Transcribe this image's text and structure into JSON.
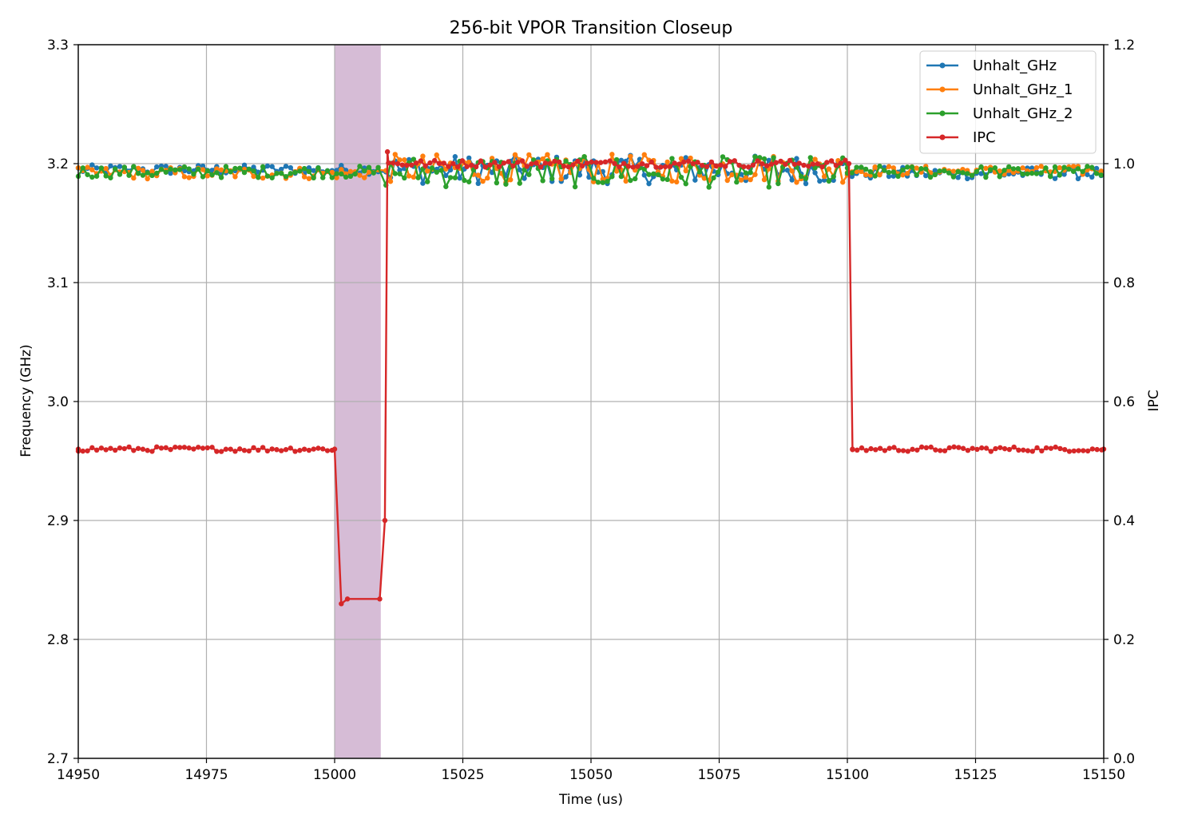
{
  "chart_data": {
    "type": "line",
    "title": "256-bit VPOR Transition Closeup",
    "xlabel": "Time (us)",
    "ylabel": "Frequency (GHz)",
    "y2label": "IPC",
    "xlim": [
      14950,
      15150
    ],
    "ylim": [
      2.7,
      3.3
    ],
    "y2lim": [
      0.0,
      1.2
    ],
    "xticks": [
      "14950",
      "14975",
      "15000",
      "15025",
      "15050",
      "15075",
      "15100",
      "15125",
      "15150"
    ],
    "yticks": [
      "2.7",
      "2.8",
      "2.9",
      "3.0",
      "3.1",
      "3.2",
      "3.3"
    ],
    "y2ticks": [
      "0.0",
      "0.2",
      "0.4",
      "0.6",
      "0.8",
      "1.0",
      "1.2"
    ],
    "grid": true,
    "legend_position": "top-right",
    "highlight_span": {
      "x0": 15000,
      "x1": 15009,
      "color": "#d6bcd6"
    },
    "series": [
      {
        "name": "Unhalt_GHz",
        "axis": "left",
        "color": "#1f77b4",
        "segments": [
          {
            "x0": 14950,
            "x1": 15009,
            "base": 3.195,
            "amp": 0.004
          },
          {
            "x0": 15010,
            "x1": 15100,
            "base": 3.195,
            "amp": 0.012
          },
          {
            "x0": 15100,
            "x1": 15150,
            "base": 3.192,
            "amp": 0.005
          }
        ]
      },
      {
        "name": "Unhalt_GHz_1",
        "axis": "left",
        "color": "#ff7f0e",
        "segments": [
          {
            "x0": 14950,
            "x1": 15009,
            "base": 3.192,
            "amp": 0.005
          },
          {
            "x0": 15010,
            "x1": 15100,
            "base": 3.196,
            "amp": 0.012
          },
          {
            "x0": 15100,
            "x1": 15150,
            "base": 3.194,
            "amp": 0.004
          }
        ]
      },
      {
        "name": "Unhalt_GHz_2",
        "axis": "left",
        "color": "#2ca02c",
        "segments": [
          {
            "x0": 14950,
            "x1": 15009,
            "base": 3.193,
            "amp": 0.005
          },
          {
            "x0": 15010,
            "x1": 15100,
            "base": 3.193,
            "amp": 0.013
          },
          {
            "x0": 15100,
            "x1": 15150,
            "base": 3.193,
            "amp": 0.005
          }
        ]
      },
      {
        "name": "IPC",
        "axis": "right",
        "color": "#d62728",
        "points": [
          [
            14950,
            0.52
          ],
          [
            15000,
            0.52
          ],
          [
            15001.3,
            0.26
          ],
          [
            15002.5,
            0.268
          ],
          [
            15008.8,
            0.268
          ],
          [
            15009.8,
            0.4
          ],
          [
            15010.3,
            1.02
          ],
          [
            15100.3,
            1.0
          ],
          [
            15101,
            0.52
          ],
          [
            15150,
            0.52
          ]
        ],
        "noise": [
          {
            "x0": 14950,
            "x1": 15000,
            "base": 0.52,
            "amp": 0.004
          },
          {
            "x0": 15010.5,
            "x1": 15100,
            "base": 1.0,
            "amp": 0.006
          },
          {
            "x0": 15101,
            "x1": 15150,
            "base": 0.52,
            "amp": 0.004
          }
        ]
      }
    ]
  }
}
